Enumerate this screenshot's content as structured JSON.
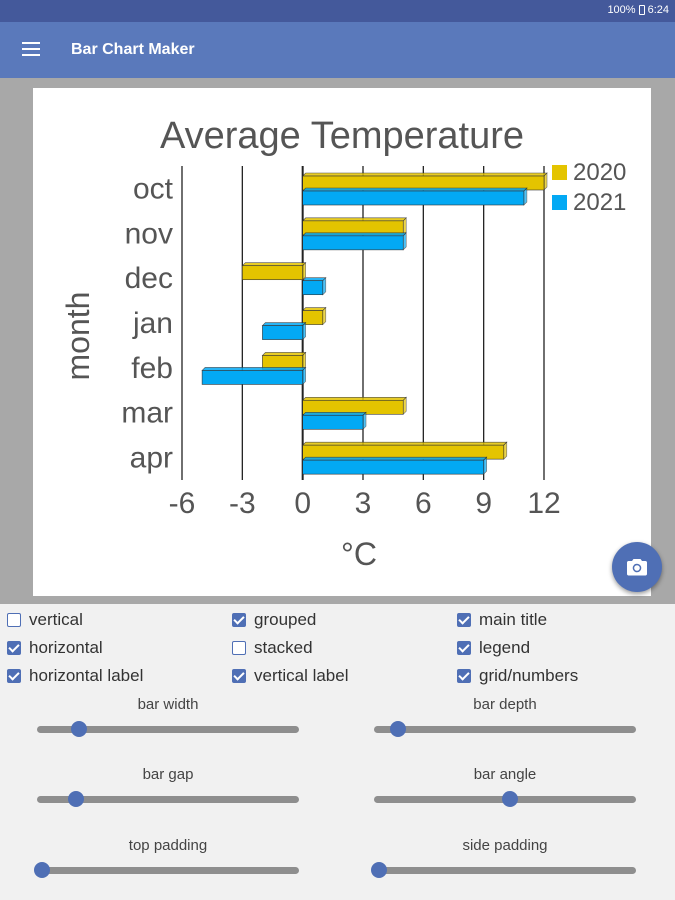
{
  "status": {
    "battery": "100%",
    "time": "6:24"
  },
  "app": {
    "title": "Bar Chart Maker"
  },
  "chart_data": {
    "type": "bar",
    "orientation": "horizontal",
    "title": "Average Temperature",
    "xlabel": "°C",
    "ylabel": "month",
    "categories": [
      "oct",
      "nov",
      "dec",
      "jan",
      "feb",
      "mar",
      "apr"
    ],
    "series": [
      {
        "name": "2020",
        "color": "#e4c400",
        "values": [
          12,
          5,
          -3,
          1,
          -2,
          5,
          10
        ]
      },
      {
        "name": "2021",
        "color": "#03a9f4",
        "values": [
          11,
          5,
          1,
          -2,
          -5,
          3,
          9
        ]
      }
    ],
    "xlim": [
      -6,
      12
    ],
    "xticks": [
      "-6",
      "-3",
      "0",
      "3",
      "6",
      "9",
      "12"
    ],
    "grid": true,
    "legend": "top-right"
  },
  "options": [
    {
      "name": "vertical",
      "label": "vertical",
      "checked": false
    },
    {
      "name": "grouped",
      "label": "grouped",
      "checked": true
    },
    {
      "name": "main-title",
      "label": "main title",
      "checked": true
    },
    {
      "name": "horizontal",
      "label": "horizontal",
      "checked": true
    },
    {
      "name": "stacked",
      "label": "stacked",
      "checked": false
    },
    {
      "name": "legend",
      "label": "legend",
      "checked": true
    },
    {
      "name": "horizontal-label",
      "label": "horizontal label",
      "checked": true
    },
    {
      "name": "vertical-label",
      "label": "vertical label",
      "checked": true
    },
    {
      "name": "grid-numbers",
      "label": "grid/numbers",
      "checked": true
    }
  ],
  "sliders": [
    {
      "name": "bar-width",
      "label": "bar width",
      "value": 0.16
    },
    {
      "name": "bar-depth",
      "label": "bar depth",
      "value": 0.09
    },
    {
      "name": "bar-gap",
      "label": "bar gap",
      "value": 0.15
    },
    {
      "name": "bar-angle",
      "label": "bar angle",
      "value": 0.52
    },
    {
      "name": "top-padding",
      "label": "top padding",
      "value": 0.02
    },
    {
      "name": "side-padding",
      "label": "side padding",
      "value": 0.02
    }
  ]
}
